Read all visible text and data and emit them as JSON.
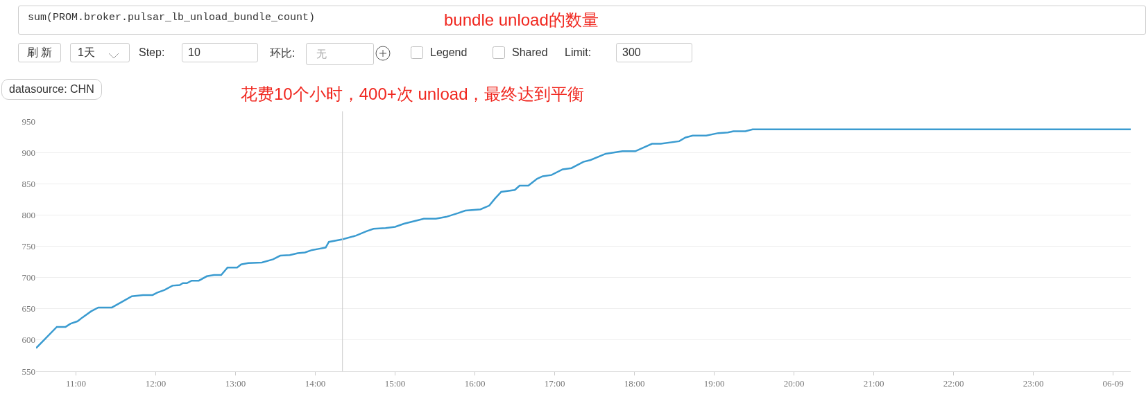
{
  "chart_data": {
    "type": "line",
    "title": "sum(PROM.broker.pulsar_lb_unload_bundle_count)",
    "subtitle": "bundle unload的数量",
    "annotations": [
      "刷 新",
      "1天",
      "Step:",
      "10",
      "环比:",
      "无",
      "Legend",
      "Shared",
      "Limit:",
      "300",
      "datasource: CHN",
      "花费10个小时，400+次 unload，最终达到平衡"
    ],
    "x": [
      10.5,
      10.76,
      10.87,
      10.93,
      11.02,
      11.08,
      11.19,
      11.28,
      11.45,
      11.59,
      11.7,
      11.84,
      11.96,
      12.02,
      12.11,
      12.21,
      12.3,
      12.34,
      12.39,
      12.45,
      12.54,
      12.64,
      12.73,
      12.82,
      12.9,
      13.02,
      13.07,
      13.16,
      13.33,
      13.47,
      13.56,
      13.68,
      13.78,
      13.87,
      13.96,
      14.05,
      14.13,
      14.17,
      14.34,
      14.51,
      14.64,
      14.73,
      14.88,
      15.0,
      15.11,
      15.36,
      15.51,
      15.64,
      15.79,
      15.88,
      16.07,
      16.18,
      16.25,
      16.33,
      16.5,
      16.56,
      16.67,
      16.78,
      16.85,
      16.96,
      17.1,
      17.21,
      17.36,
      17.45,
      17.64,
      17.85,
      18.01,
      18.22,
      18.33,
      18.56,
      18.64,
      18.73,
      18.9,
      19.05,
      19.17,
      19.24,
      19.39,
      19.48,
      19.72,
      24.22
    ],
    "series": [
      {
        "color": "#3a9bd0",
        "values": [
          587,
          621,
          621,
          626,
          630,
          636,
          646,
          652,
          652,
          662,
          670,
          672,
          672,
          676,
          680,
          687,
          688,
          691,
          691,
          695,
          695,
          702,
          704,
          704,
          716,
          716,
          721,
          723,
          724,
          729,
          735,
          736,
          739,
          740,
          744,
          746,
          748,
          757,
          761,
          767,
          774,
          778,
          779,
          781,
          786,
          794,
          794,
          797,
          803,
          807,
          809,
          815,
          826,
          837,
          840,
          847,
          847,
          858,
          862,
          864,
          873,
          875,
          885,
          888,
          898,
          902,
          902,
          914,
          914,
          918,
          924,
          927,
          927,
          931,
          932,
          934,
          934,
          937,
          937,
          937
        ]
      }
    ],
    "xlim": [
      10.5,
      24.22
    ],
    "xticks": [
      {
        "value": 11,
        "label": "11:00"
      },
      {
        "value": 12,
        "label": "12:00"
      },
      {
        "value": 13,
        "label": "13:00"
      },
      {
        "value": 14,
        "label": "14:00"
      },
      {
        "value": 15,
        "label": "15:00"
      },
      {
        "value": 16,
        "label": "16:00"
      },
      {
        "value": 17,
        "label": "17:00"
      },
      {
        "value": 18,
        "label": "18:00"
      },
      {
        "value": 19,
        "label": "19:00"
      },
      {
        "value": 20,
        "label": "20:00"
      },
      {
        "value": 21,
        "label": "21:00"
      },
      {
        "value": 22,
        "label": "22:00"
      },
      {
        "value": 23,
        "label": "23:00"
      },
      {
        "value": 24,
        "label": "06-09"
      }
    ],
    "ylim": [
      550,
      950
    ],
    "yticks": [
      550,
      600,
      650,
      700,
      750,
      800,
      850,
      900,
      950
    ],
    "ref_lines": [
      {
        "axis": "x",
        "value": 14.34,
        "color": "#cccccc"
      }
    ],
    "grid": "y",
    "marker": "none",
    "line_style": "solid"
  }
}
